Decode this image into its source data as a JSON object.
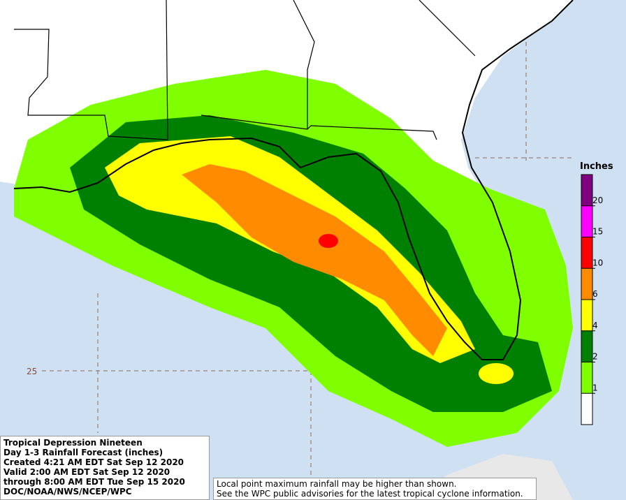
{
  "map": {
    "lat_label": "25",
    "legend": {
      "title": "Inches",
      "ticks": [
        1,
        2,
        4,
        6,
        10,
        15,
        20
      ],
      "colors": [
        "#ffffff",
        "#7fff00",
        "#008000",
        "#ffff00",
        "#ff8c00",
        "#ff0000",
        "#ff00ff",
        "#800080"
      ]
    },
    "info": [
      "Tropical Depression Nineteen",
      "Day 1-3 Rainfall Forecast (inches)",
      "Created 4:21 AM EDT Sat Sep 12 2020",
      "Valid 2:00 AM EDT Sat Sep 12 2020",
      "through 8:00 AM EDT Tue Sep 15 2020",
      "DOC/NOAA/NWS/NCEP/WPC"
    ],
    "note": [
      "Local point maximum rainfall may be higher than shown.",
      "See the WPC public advisories for the latest tropical cyclone information."
    ]
  }
}
